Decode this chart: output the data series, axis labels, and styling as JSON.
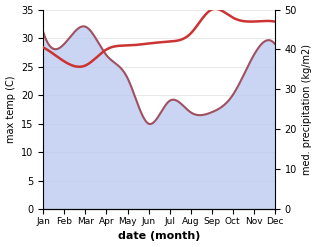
{
  "months": [
    "Jan",
    "Feb",
    "Mar",
    "Apr",
    "May",
    "Jun",
    "Jul",
    "Aug",
    "Sep",
    "Oct",
    "Nov",
    "Dec"
  ],
  "temp_max": [
    31.0,
    29.0,
    32.0,
    27.0,
    23.0,
    15.0,
    19.0,
    17.0,
    17.0,
    20.0,
    27.0,
    29.0
  ],
  "precipitation": [
    40.5,
    37.0,
    36.0,
    40.0,
    41.0,
    41.5,
    42.0,
    44.0,
    50.0,
    48.0,
    47.0,
    47.0
  ],
  "temp_color": "#a05060",
  "precip_color": "#cc3333",
  "fill_color": "#b8c8f0",
  "fill_alpha": 0.75,
  "temp_ylim": [
    0,
    35
  ],
  "precip_ylim": [
    0,
    50
  ],
  "temp_yticks": [
    0,
    5,
    10,
    15,
    20,
    25,
    30,
    35
  ],
  "precip_yticks": [
    0,
    10,
    20,
    30,
    40,
    50
  ],
  "xlabel": "date (month)",
  "ylabel_left": "max temp (C)",
  "ylabel_right": "med. precipitation (kg/m2)",
  "bg_color": "#ffffff",
  "grid_color": "#e0e0e0",
  "title": ""
}
